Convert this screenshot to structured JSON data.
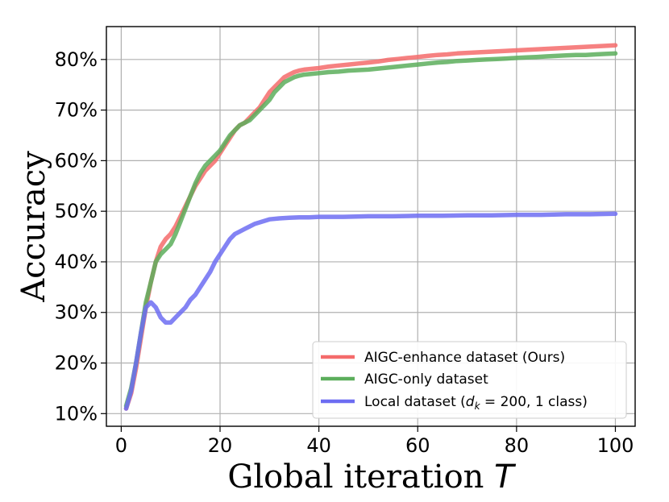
{
  "chart_data": {
    "type": "line",
    "xlabel": "Global iteration",
    "xlabel_var": "T",
    "ylabel": "Accuracy",
    "xlim": [
      -3,
      104
    ],
    "ylim": [
      0.075,
      0.865
    ],
    "xticks": [
      0,
      20,
      40,
      60,
      80,
      100
    ],
    "yticks": [
      0.1,
      0.2,
      0.3,
      0.4,
      0.5,
      0.6,
      0.7,
      0.8
    ],
    "ytick_labels": [
      "10%",
      "20%",
      "30%",
      "40%",
      "50%",
      "60%",
      "70%",
      "80%"
    ],
    "grid": true,
    "legend_position": "bottom-right",
    "series": [
      {
        "name": "AIGC-enhance dataset (Ours)",
        "color": "#f46b6b",
        "x": [
          1,
          2,
          3,
          4,
          5,
          6,
          7,
          8,
          9,
          10,
          11,
          12,
          13,
          14,
          15,
          16,
          17,
          18,
          19,
          20,
          21,
          22,
          23,
          24,
          25,
          26,
          27,
          28,
          29,
          30,
          31,
          32,
          33,
          34,
          35,
          36,
          37,
          38,
          39,
          40,
          42,
          44,
          46,
          48,
          50,
          52,
          54,
          56,
          58,
          60,
          62,
          64,
          66,
          68,
          70,
          72,
          74,
          76,
          78,
          80,
          82,
          84,
          86,
          88,
          90,
          92,
          94,
          96,
          98,
          100
        ],
        "values": [
          0.11,
          0.14,
          0.19,
          0.25,
          0.31,
          0.36,
          0.4,
          0.43,
          0.445,
          0.455,
          0.47,
          0.49,
          0.51,
          0.53,
          0.55,
          0.565,
          0.58,
          0.59,
          0.6,
          0.615,
          0.63,
          0.645,
          0.66,
          0.67,
          0.675,
          0.685,
          0.695,
          0.705,
          0.72,
          0.735,
          0.745,
          0.755,
          0.765,
          0.77,
          0.775,
          0.778,
          0.78,
          0.781,
          0.782,
          0.783,
          0.786,
          0.788,
          0.79,
          0.792,
          0.794,
          0.796,
          0.799,
          0.801,
          0.803,
          0.805,
          0.807,
          0.809,
          0.81,
          0.812,
          0.813,
          0.814,
          0.815,
          0.816,
          0.817,
          0.818,
          0.819,
          0.82,
          0.821,
          0.822,
          0.823,
          0.824,
          0.825,
          0.826,
          0.827,
          0.828
        ]
      },
      {
        "name": "AIGC-only dataset",
        "color": "#5cae5c",
        "x": [
          1,
          2,
          3,
          4,
          5,
          6,
          7,
          8,
          9,
          10,
          11,
          12,
          13,
          14,
          15,
          16,
          17,
          18,
          19,
          20,
          21,
          22,
          23,
          24,
          25,
          26,
          27,
          28,
          29,
          30,
          31,
          32,
          33,
          34,
          35,
          36,
          37,
          38,
          39,
          40,
          42,
          44,
          46,
          48,
          50,
          52,
          54,
          56,
          58,
          60,
          62,
          64,
          66,
          68,
          70,
          72,
          74,
          76,
          78,
          80,
          82,
          84,
          86,
          88,
          90,
          92,
          94,
          96,
          98,
          100
        ],
        "values": [
          0.115,
          0.15,
          0.2,
          0.26,
          0.32,
          0.36,
          0.4,
          0.415,
          0.425,
          0.435,
          0.455,
          0.48,
          0.505,
          0.53,
          0.555,
          0.575,
          0.59,
          0.6,
          0.61,
          0.62,
          0.635,
          0.65,
          0.66,
          0.67,
          0.675,
          0.68,
          0.69,
          0.7,
          0.71,
          0.72,
          0.735,
          0.745,
          0.755,
          0.76,
          0.765,
          0.768,
          0.77,
          0.771,
          0.772,
          0.773,
          0.775,
          0.776,
          0.778,
          0.779,
          0.78,
          0.782,
          0.784,
          0.786,
          0.788,
          0.79,
          0.792,
          0.794,
          0.795,
          0.797,
          0.798,
          0.799,
          0.8,
          0.801,
          0.802,
          0.803,
          0.804,
          0.805,
          0.806,
          0.807,
          0.808,
          0.809,
          0.809,
          0.81,
          0.811,
          0.812
        ]
      },
      {
        "name": "Local dataset",
        "color": "#6d6df2",
        "x": [
          1,
          2,
          3,
          4,
          5,
          6,
          7,
          8,
          9,
          10,
          11,
          12,
          13,
          14,
          15,
          16,
          17,
          18,
          19,
          20,
          21,
          22,
          23,
          24,
          25,
          26,
          27,
          28,
          29,
          30,
          32,
          34,
          36,
          38,
          40,
          45,
          50,
          55,
          60,
          65,
          70,
          75,
          80,
          85,
          90,
          95,
          100
        ],
        "values": [
          0.11,
          0.145,
          0.2,
          0.26,
          0.31,
          0.32,
          0.31,
          0.29,
          0.28,
          0.28,
          0.29,
          0.3,
          0.31,
          0.325,
          0.335,
          0.35,
          0.365,
          0.38,
          0.4,
          0.415,
          0.43,
          0.445,
          0.455,
          0.46,
          0.465,
          0.47,
          0.475,
          0.478,
          0.481,
          0.484,
          0.486,
          0.487,
          0.488,
          0.488,
          0.489,
          0.489,
          0.49,
          0.49,
          0.491,
          0.491,
          0.492,
          0.492,
          0.493,
          0.493,
          0.494,
          0.494,
          0.495
        ]
      }
    ]
  },
  "legend": {
    "items": [
      {
        "label": "AIGC-enhance dataset (Ours)",
        "color": "#f46b6b"
      },
      {
        "label": "AIGC-only dataset",
        "color": "#5cae5c"
      },
      {
        "label_prefix": "Local dataset (",
        "label_var": "d",
        "label_sub": "k",
        "label_suffix": " = 200, 1 class)",
        "color": "#6d6df2"
      }
    ]
  }
}
